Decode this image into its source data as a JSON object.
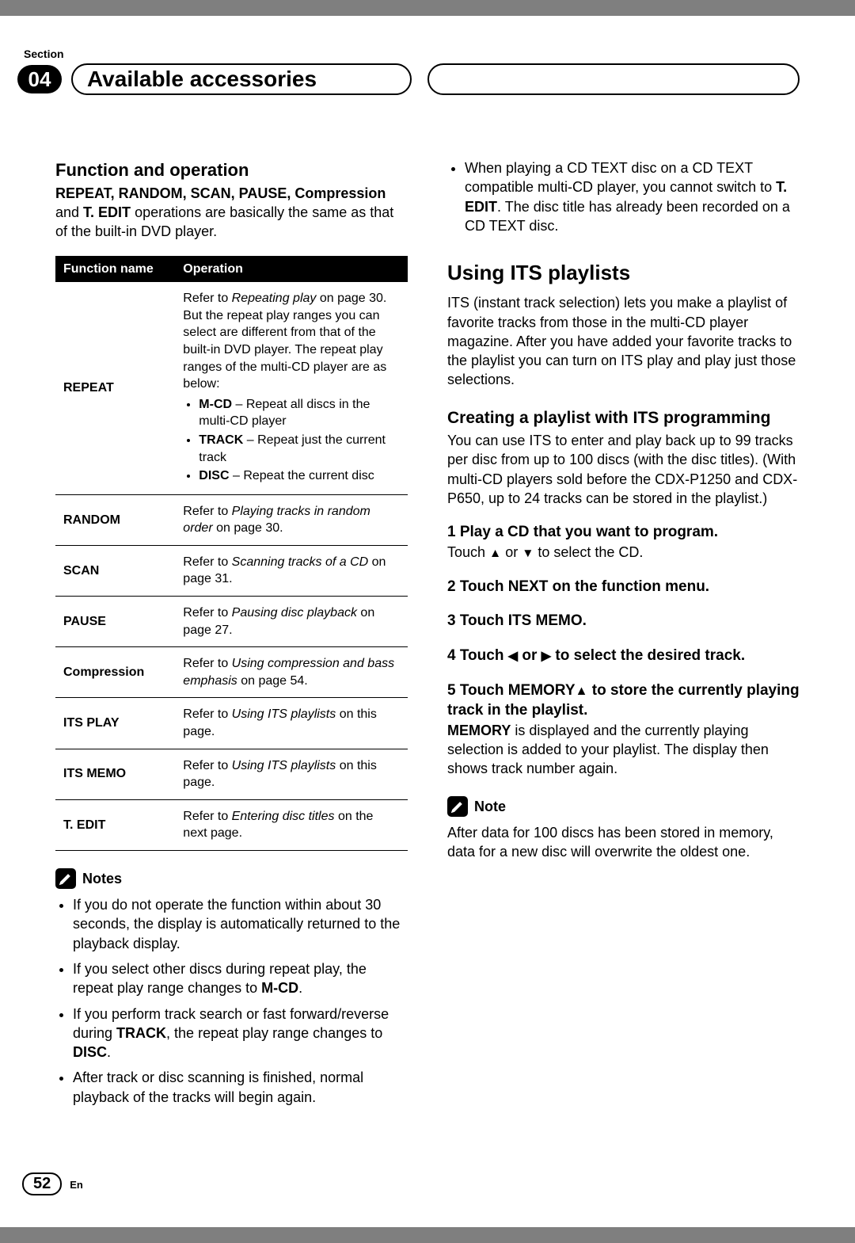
{
  "header": {
    "section_label": "Section",
    "section_number": "04",
    "title": "Available accessories"
  },
  "left": {
    "h2": "Function and operation",
    "intro_bold": "REPEAT, RANDOM, SCAN, PAUSE, Compression",
    "intro_mid": " and ",
    "intro_bold2": "T. EDIT",
    "intro_rest": " operations are basically the same as that of the built-in DVD player.",
    "table": {
      "head_fn": "Function name",
      "head_op": "Operation",
      "rows": [
        {
          "fn": "REPEAT",
          "op_pre": "Refer to ",
          "op_ital": "Repeating play",
          "op_post": " on page 30. But the repeat play ranges you can select are different from that of the built-in DVD player. The repeat play ranges of the multi-CD player are as below:",
          "items": [
            {
              "b": "M-CD",
              "t": " – Repeat all discs in the multi-CD player"
            },
            {
              "b": "TRACK",
              "t": " – Repeat just the current track"
            },
            {
              "b": "DISC",
              "t": " – Repeat the current disc"
            }
          ]
        },
        {
          "fn": "RANDOM",
          "op_pre": "Refer to ",
          "op_ital": "Playing tracks in random order",
          "op_post": " on page 30."
        },
        {
          "fn": "SCAN",
          "op_pre": "Refer to ",
          "op_ital": "Scanning tracks of a CD",
          "op_post": " on page 31."
        },
        {
          "fn": "PAUSE",
          "op_pre": "Refer to ",
          "op_ital": "Pausing disc playback",
          "op_post": " on page 27."
        },
        {
          "fn": "Compression",
          "op_pre": "Refer to ",
          "op_ital": "Using compression and bass emphasis",
          "op_post": " on page 54."
        },
        {
          "fn": "ITS PLAY",
          "op_pre": "Refer to ",
          "op_ital": "Using ITS playlists",
          "op_post": " on this page."
        },
        {
          "fn": "ITS MEMO",
          "op_pre": "Refer to ",
          "op_ital": "Using ITS playlists",
          "op_post": " on this page."
        },
        {
          "fn": "T. EDIT",
          "op_pre": "Refer to ",
          "op_ital": "Entering disc titles",
          "op_post": " on the next page."
        }
      ]
    },
    "notes_label": "Notes",
    "notes": [
      {
        "t": "If you do not operate the function within about 30 seconds, the display is automatically returned to the playback display."
      },
      {
        "t": "If you select other discs during repeat play, the repeat play range changes to ",
        "b": "M-CD",
        "post": "."
      },
      {
        "t": "If you perform track search or fast forward/reverse during ",
        "b": "TRACK",
        "mid": ", the repeat play range changes to ",
        "b2": "DISC",
        "post": "."
      },
      {
        "t": "After track or disc scanning is finished, normal playback of the tracks will begin again."
      }
    ]
  },
  "right": {
    "top_bullet_pre": "When playing a CD TEXT disc on a CD TEXT compatible multi-CD player, you cannot switch to ",
    "top_bullet_b": "T. EDIT",
    "top_bullet_post": ". The disc title has already been recorded on a CD TEXT disc.",
    "h2": "Using ITS playlists",
    "p1": "ITS (instant track selection) lets you make a playlist of favorite tracks from those in the multi-CD player magazine. After you have added your favorite tracks to the playlist you can turn on ITS play and play just those selections.",
    "h3": "Creating a playlist with ITS programming",
    "p2": "You can use ITS to enter and play back up to 99 tracks per disc from up to 100 discs (with the disc titles). (With multi-CD players sold before the CDX-P1250 and CDX-P650, up to 24 tracks can be stored in the playlist.)",
    "steps": {
      "s1": "1    Play a CD that you want to program.",
      "s1_sub_pre": "Touch ",
      "s1_sub_up": "▲",
      "s1_sub_mid": " or ",
      "s1_sub_dn": "▼",
      "s1_sub_post": " to select the CD.",
      "s2": "2    Touch NEXT on the function menu.",
      "s3": "3    Touch ITS MEMO.",
      "s4_pre": "4    Touch ",
      "s4_l": "◀",
      "s4_mid": " or ",
      "s4_r": "▶",
      "s4_post": " to select the desired track.",
      "s5_pre": "5    Touch MEMORY",
      "s5_up": "▲",
      "s5_post": " to store the currently playing track in the playlist.",
      "s5_body_b": "MEMORY",
      "s5_body": " is displayed and the currently playing selection is added to your playlist. The display then shows track number again."
    },
    "note_label": "Note",
    "note_body": "After data for 100 discs has been stored in memory, data for a new disc will overwrite the oldest one."
  },
  "footer": {
    "page": "52",
    "lang": "En"
  }
}
